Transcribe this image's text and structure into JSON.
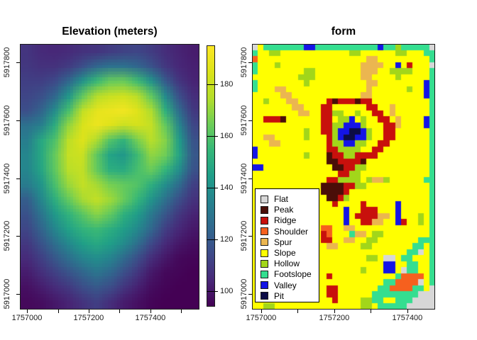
{
  "chart_data": [
    {
      "type": "heatmap",
      "title": "Elevation (meters)",
      "palette": "viridis",
      "value_min": 94,
      "value_max": 195,
      "xlim": [
        1756977,
        1757559
      ],
      "ylim": [
        5916946,
        5917864
      ],
      "x_ticks": {
        "step": 100,
        "labeled": [
          1757000,
          1757200,
          1757400
        ]
      },
      "y_ticks": {
        "step": 200,
        "labeled": [
          5917000,
          5917200,
          5917400,
          5917600,
          5917800
        ]
      },
      "colorbar": {
        "min": 94,
        "max": 195,
        "ticks": [
          180,
          160,
          140,
          120,
          100
        ]
      },
      "grid": [
        [
          108,
          105,
          104,
          105,
          107,
          108,
          110,
          112,
          113,
          110,
          106,
          103,
          101
        ],
        [
          109,
          107,
          107,
          110,
          116,
          124,
          128,
          128,
          124,
          117,
          109,
          104,
          102
        ],
        [
          111,
          111,
          114,
          124,
          140,
          155,
          163,
          164,
          156,
          140,
          120,
          108,
          103
        ],
        [
          113,
          116,
          124,
          142,
          162,
          175,
          180,
          182,
          176,
          162,
          138,
          116,
          106
        ],
        [
          116,
          123,
          138,
          158,
          178,
          188,
          190,
          192,
          186,
          174,
          152,
          126,
          109
        ],
        [
          128,
          133,
          150,
          170,
          184,
          190,
          186,
          180,
          183,
          179,
          163,
          136,
          113
        ],
        [
          133,
          148,
          159,
          177,
          186,
          174,
          160,
          152,
          166,
          176,
          168,
          144,
          117
        ],
        [
          136,
          148,
          163,
          179,
          181,
          162,
          147,
          142,
          156,
          170,
          165,
          147,
          119
        ],
        [
          136,
          147,
          162,
          176,
          179,
          163,
          151,
          149,
          158,
          164,
          154,
          139,
          117
        ],
        [
          132,
          141,
          158,
          171,
          179,
          173,
          166,
          163,
          160,
          151,
          139,
          126,
          111
        ],
        [
          121,
          136,
          151,
          163,
          173,
          179,
          172,
          164,
          154,
          141,
          128,
          116,
          107
        ],
        [
          117,
          129,
          143,
          153,
          161,
          169,
          163,
          152,
          144,
          131,
          119,
          109,
          103
        ],
        [
          113,
          123,
          136,
          146,
          153,
          156,
          151,
          145,
          137,
          124,
          111,
          104,
          100
        ],
        [
          109,
          117,
          127,
          137,
          145,
          149,
          145,
          138,
          127,
          114,
          105,
          100,
          97
        ],
        [
          105,
          111,
          119,
          127,
          135,
          139,
          135,
          126,
          116,
          106,
          100,
          96,
          95
        ],
        [
          101,
          106,
          111,
          117,
          123,
          129,
          124,
          116,
          108,
          100,
          96,
          95,
          94
        ],
        [
          98,
          101,
          105,
          109,
          115,
          119,
          115,
          108,
          102,
          97,
          95,
          94,
          94
        ],
        [
          96,
          97,
          100,
          103,
          107,
          111,
          106,
          101,
          98,
          95,
          94,
          94,
          94
        ]
      ]
    },
    {
      "type": "heatmap-categorical",
      "title": "form",
      "xlim": [
        1756975,
        1757476
      ],
      "ylim": [
        5916946,
        5917864
      ],
      "x_ticks": {
        "step": 100,
        "labeled": [
          1757000,
          1757200,
          1757400
        ]
      },
      "y_ticks": {
        "step": 200,
        "labeled": [
          5917000,
          5917200,
          5917400,
          5917600,
          5917800
        ]
      },
      "categories": [
        {
          "code": "F",
          "label": "Flat",
          "color": "#D7D7D7"
        },
        {
          "code": "P",
          "label": "Peak",
          "color": "#4A0E08"
        },
        {
          "code": "R",
          "label": "Ridge",
          "color": "#C8100C"
        },
        {
          "code": "H",
          "label": "Shoulder",
          "color": "#F6601E"
        },
        {
          "code": "U",
          "label": "Spur",
          "color": "#EBB650"
        },
        {
          "code": "S",
          "label": "Slope",
          "color": "#FFFF00"
        },
        {
          "code": "O",
          "label": "Hollow",
          "color": "#A2D61A"
        },
        {
          "code": "T",
          "label": "Footslope",
          "color": "#35DE90"
        },
        {
          "code": "V",
          "label": "Valley",
          "color": "#1414E6"
        },
        {
          "code": "I",
          "label": "Pit",
          "color": "#0C0C46"
        }
      ],
      "grid": [
        "FSTTTTTTTVVTTTTTTTTTTTVTTOTTTTTF",
        "TSSOOSSSSSSSSSSSSOOSSSSSSOOSSSTT",
        "HSSSSSSSSSSSSSSSSSSSUUSSSSSSSSST",
        "TSSSOSSSSSSSSSSSSSSUUUUSSVSRSSSF",
        "TSSSSSSSSOOSSSSSSSSUUUSSOOOOSSST",
        "SSSSSSSSOOOSSSSSSSSUUSSSSOSSSSST",
        "TSSSSSSSSOSSSSSSSSSSUUSSSSSSSSVT",
        "TSSSUUSSSSSSSSSSSSSSUSSSSSSOSSVT",
        "SSSSSUUSSSSSSSSSSSSUUSSSSSSSSSVT",
        "SSOSSSUUSSSSSRPRRRPRRSSSSSSSSSST",
        "SSSSSSSUUSSSRRSSSSSSRRSSUSSSSSST",
        "SSSSSSSSUUSSRROOSSOSSRRSUSSSSSST",
        "SSRRRPSSSSSSRRSOOVSOSSRRSUSSSSVT",
        "SSSSSSSSSSSSRROOVVVOSSSRRUSSSSVT",
        "SSSSSSSSSOSSRROVVIIVOSSRRSSSSSST",
        "SSUUSSSSSOSSSROVIIVVOSSRRSSSSSST",
        "SSSUUSSSSSSSSROOVVOOSSRRSSSSSSST",
        "VSSSSSSSSSSSSRROOOOSSRRSSSSSSSST",
        "VSSSSSSSSOSSSPRROORRRRSSSSSSSSST",
        "SSSSSSSSSSSSSPPRRRRPSSSSSSSSSSST",
        "VVSSSSSSSSSSSSPPRROOSSSSSSSSSSST",
        "SSSSSSSSSSSSSSSRROOSSSSSSSSSSSST",
        "SSSSSSSSSSSSSRROOOOSOUUOSSSSSSTT",
        "SSSSSSSSSSSSPPPPRROOSSSSSSSSSSST",
        "SSSSSSSSSSSSPPPPRSSSSSSSSSSSSSST",
        "SSSSSSSSSSSSSPPROSSSSSSSSSSSSSST",
        "SSSSSSSSSSSSSSRSSSSRSSSSSVSSSSST",
        "SSSSSSSSSSSSSSSSVSSRRRSSSVSSSSST",
        "SSSSSSSSSSSSSSSSVSRRRRUUSVSSSOST",
        "SSSSSSSSSSSSSSSSVSSRRUUSSVRSSOST",
        "SSSSSSSSSSSSHHSSUUSSSSSSSSSSSSST",
        "SSSSSSSSSSSSRHSSSTUUSOOSSSSSSSST",
        "SSSSSSSSSSSSRRSSUUSSOOSSSSSSSTTT",
        "SSSSSSSSSSSSSUUSSSSOOSSSSSSSTTST",
        "SSSSSSSSSSSSSSSSSSSSSSSSSSSTTFST",
        "SSSSSSSSSSSSSSSSSSSSOOSFFSTTSSST",
        "SSSSSSSSSSSSSSSSSSSSSSSVVSSTTSST",
        "SSSSSSSSSSSSSSSSSSSOSSSVVSFTTSST",
        "SSSSSSSSSSSSSRSSSSSSSSSSSTHHHHST",
        "SSSSSSSSSSSSSSSSSSSSSSSTTHHHHFST",
        "SSSSSSSSSSSSSRRSSSSSSSTTHHHHTTSF",
        "SSSSSSSSSSSSSRRSSSSSSTTTTTTTTFFF",
        "SSSSSSSSSSSSSSRSSSSOOTTSSTTTFFFF",
        "SSOOSSSSSSSSSSSSSSSOOSTTTTTFFFFF"
      ]
    }
  ]
}
